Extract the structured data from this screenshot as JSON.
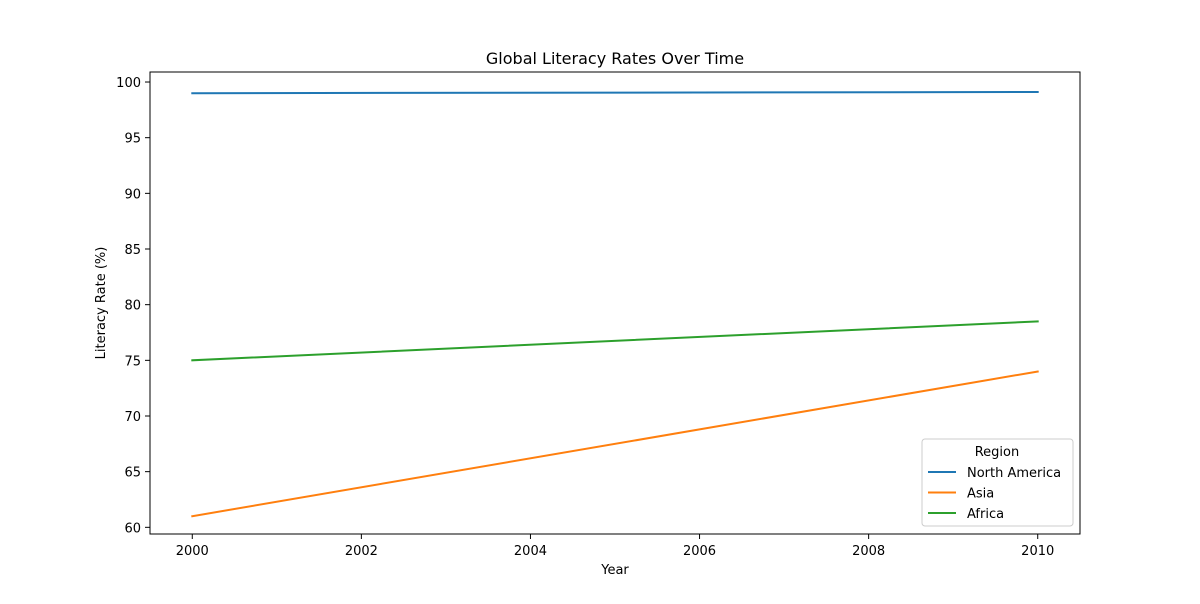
{
  "chart_data": {
    "type": "line",
    "title": "Global Literacy Rates Over Time",
    "xlabel": "Year",
    "ylabel": "Literacy Rate (%)",
    "x": [
      2000,
      2010
    ],
    "xlim": [
      1999.5,
      2010.5
    ],
    "ylim": [
      59.4,
      100.9
    ],
    "xticks": [
      2000,
      2002,
      2004,
      2006,
      2008,
      2010
    ],
    "yticks": [
      60,
      65,
      70,
      75,
      80,
      85,
      90,
      95,
      100
    ],
    "grid": false,
    "legend": {
      "title": "Region",
      "placement": "lower-right"
    },
    "series": [
      {
        "name": "North America",
        "color": "#1f77b4",
        "values": [
          99.0,
          99.1
        ]
      },
      {
        "name": "Asia",
        "color": "#ff7f0e",
        "values": [
          61.0,
          74.0
        ]
      },
      {
        "name": "Africa",
        "color": "#2ca02c",
        "values": [
          75.0,
          78.5
        ]
      }
    ]
  }
}
